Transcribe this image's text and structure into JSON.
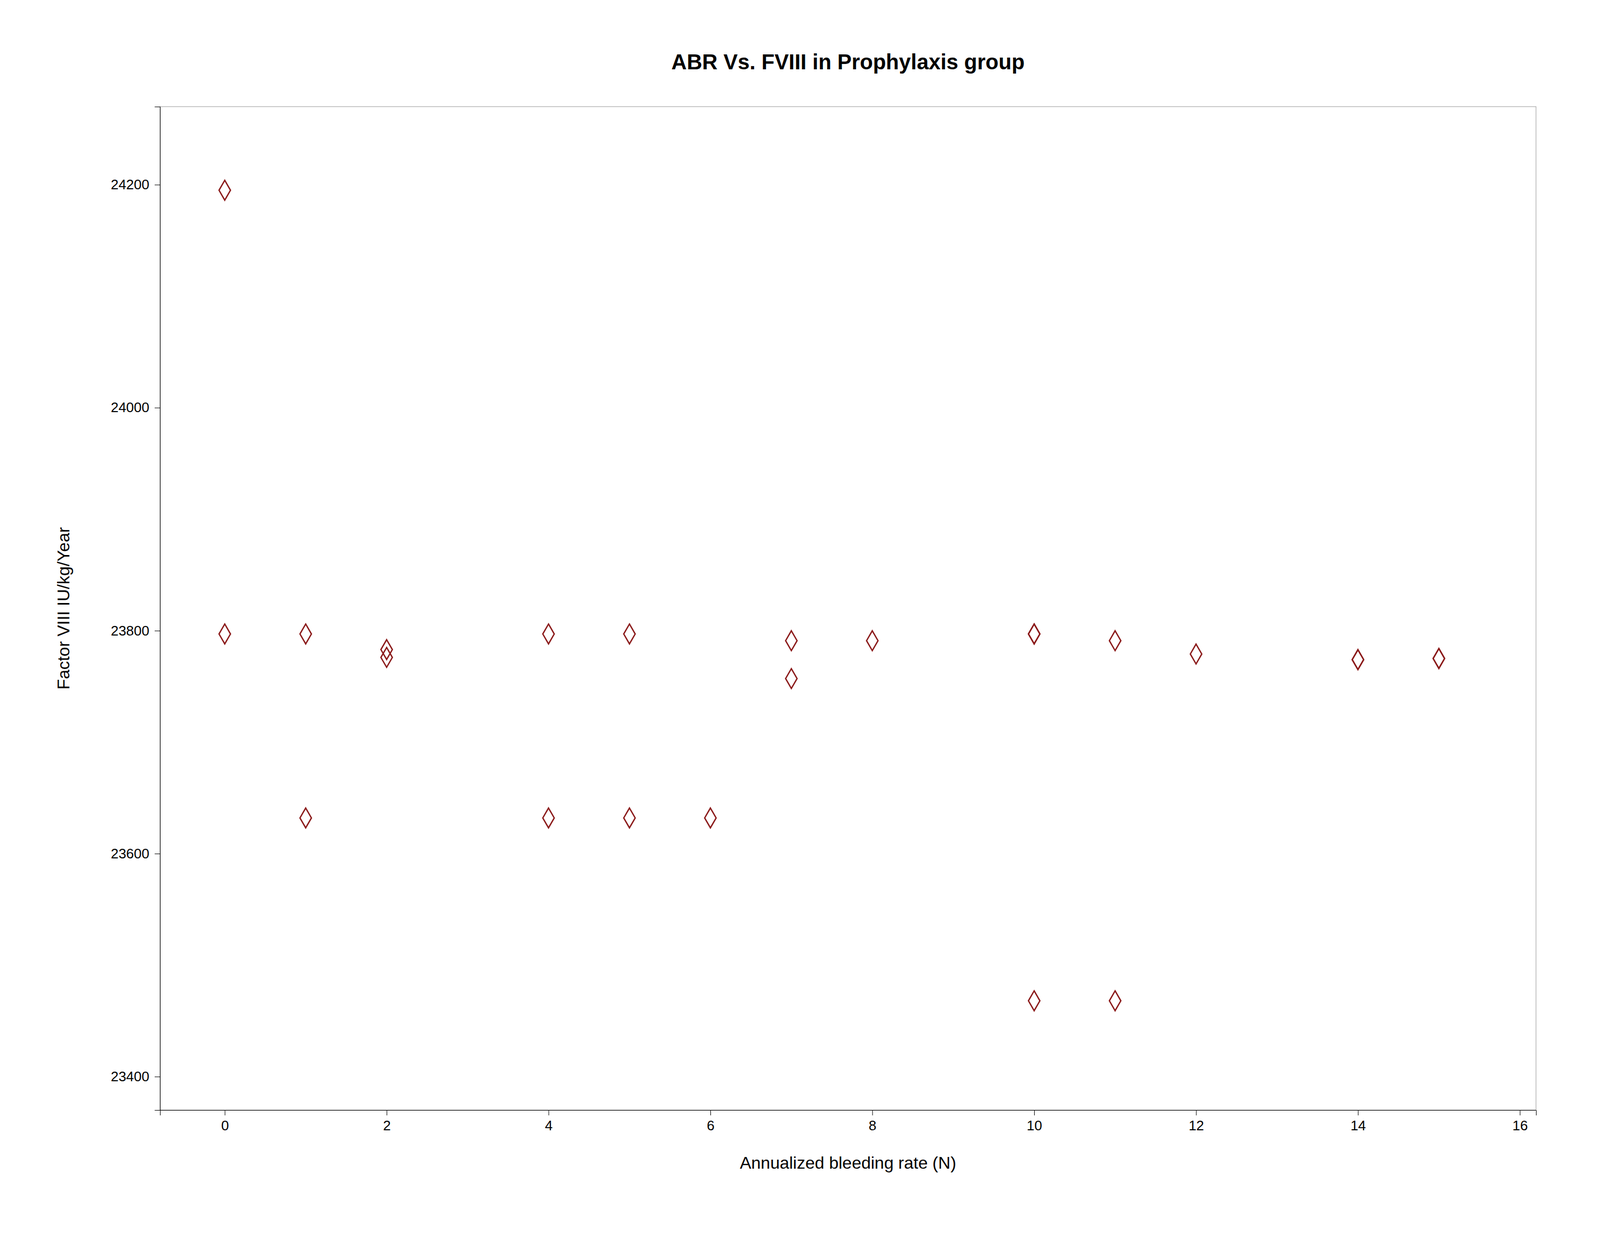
{
  "chart_data": {
    "type": "scatter",
    "title": "ABR Vs. FVIII in Prophylaxis group",
    "xlabel": "Annualized bleeding rate (N)",
    "ylabel": "Factor VIII IU/kg/Year",
    "x": [
      0,
      0,
      1,
      1,
      2,
      2,
      4,
      4,
      5,
      5,
      6,
      7,
      7,
      8,
      10,
      10,
      10,
      11,
      11,
      12,
      14,
      14,
      15,
      15
    ],
    "values": [
      24195,
      23797,
      23797,
      23632,
      23783,
      23776,
      23797,
      23632,
      23797,
      23632,
      23632,
      23757,
      23791,
      23791,
      23797,
      23797,
      23468,
      23468,
      23791,
      23779,
      23774,
      23774,
      23775,
      23775
    ],
    "color": "#8b1a1a",
    "marker": "diamond",
    "xlim": [
      -0.8,
      16.2
    ],
    "ylim": [
      23370,
      24270
    ],
    "xticks": [
      0,
      2,
      4,
      6,
      8,
      10,
      12,
      14,
      16
    ],
    "yticks": [
      23400,
      23600,
      23800,
      24000,
      24200
    ],
    "grid": false
  }
}
